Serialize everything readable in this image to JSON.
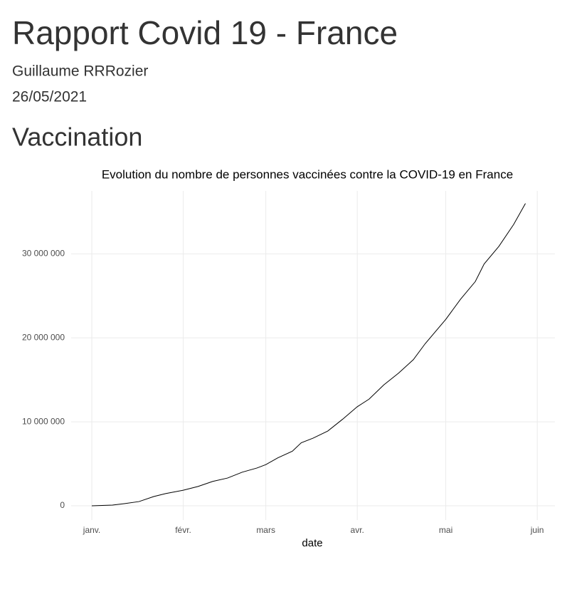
{
  "header": {
    "title": "Rapport Covid 19 - France",
    "author": "Guillaume RRRozier",
    "date": "26/05/2021"
  },
  "section": {
    "title": "Vaccination"
  },
  "chart_data": {
    "type": "line",
    "title": "Evolution du nombre de personnes vaccinées contre la COVID-19 en France",
    "x_label": "date",
    "x": [
      1,
      8,
      12,
      17,
      22,
      26,
      32,
      37,
      42,
      47,
      52,
      57,
      60,
      64,
      69,
      72,
      76,
      81,
      86,
      91,
      95,
      100,
      105,
      110,
      114,
      121,
      126,
      131,
      134,
      139,
      144,
      148
    ],
    "series": [
      {
        "name": "vaccinés",
        "color": "#000000",
        "values": [
          0,
          80000,
          250000,
          500000,
          1100000,
          1450000,
          1850000,
          2300000,
          2900000,
          3300000,
          4000000,
          4500000,
          4900000,
          5700000,
          6500000,
          7500000,
          8050000,
          8900000,
          10300000,
          11800000,
          12700000,
          14400000,
          15800000,
          17400000,
          19300000,
          22200000,
          24600000,
          26700000,
          28800000,
          30900000,
          33500000,
          36000000
        ]
      }
    ],
    "xlim": [
      -6,
      158
    ],
    "xticks": [
      {
        "value": 1,
        "label": "janv."
      },
      {
        "value": 32,
        "label": "févr."
      },
      {
        "value": 60,
        "label": "mars"
      },
      {
        "value": 91,
        "label": "avr."
      },
      {
        "value": 121,
        "label": "mai"
      },
      {
        "value": 152,
        "label": "juin"
      }
    ],
    "ylim": [
      -1700000,
      37500000
    ],
    "yticks": [
      0,
      {
        "value": 10000000,
        "label": "10 000 000"
      },
      {
        "value": 20000000,
        "label": "20 000 000"
      },
      {
        "value": 30000000,
        "label": "30 000 000"
      }
    ],
    "grid": true
  }
}
